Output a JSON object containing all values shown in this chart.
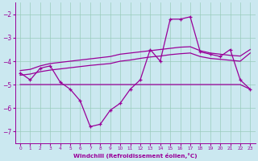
{
  "xlabel": "Windchill (Refroidissement éolien,°C)",
  "background_color": "#cbe8f0",
  "grid_color": "#99ccbb",
  "line_color": "#990099",
  "x": [
    0,
    1,
    2,
    3,
    4,
    5,
    6,
    7,
    8,
    9,
    10,
    11,
    12,
    13,
    14,
    15,
    16,
    17,
    18,
    19,
    20,
    21,
    22,
    23
  ],
  "windchill": [
    -4.5,
    -4.8,
    -4.3,
    -4.2,
    -4.9,
    -5.2,
    -5.7,
    -6.8,
    -6.7,
    -6.1,
    -5.8,
    -5.2,
    -4.8,
    -3.5,
    -4.0,
    -2.2,
    -2.2,
    -2.1,
    -3.6,
    -3.7,
    -3.8,
    -3.5,
    -4.8,
    -5.2
  ],
  "line_upper": [
    -4.4,
    -4.35,
    -4.2,
    -4.1,
    -4.05,
    -4.0,
    -3.95,
    -3.9,
    -3.85,
    -3.8,
    -3.7,
    -3.65,
    -3.6,
    -3.55,
    -3.5,
    -3.45,
    -3.4,
    -3.38,
    -3.55,
    -3.65,
    -3.7,
    -3.75,
    -3.78,
    -3.5
  ],
  "line_mid": [
    -4.6,
    -4.55,
    -4.45,
    -4.38,
    -4.33,
    -4.28,
    -4.23,
    -4.18,
    -4.14,
    -4.1,
    -4.0,
    -3.95,
    -3.88,
    -3.82,
    -3.78,
    -3.72,
    -3.68,
    -3.65,
    -3.8,
    -3.88,
    -3.92,
    -3.96,
    -4.0,
    -3.65
  ],
  "line_flat": [
    -5.0,
    -5.0,
    -5.0,
    -5.0,
    -5.0,
    -5.0,
    -5.0,
    -5.0,
    -5.0,
    -5.0,
    -5.0,
    -5.0,
    -5.0,
    -5.0,
    -5.0,
    -5.0,
    -5.0,
    -5.0,
    -5.0,
    -5.0,
    -5.0,
    -5.0,
    -5.0,
    -5.2
  ],
  "ylim": [
    -7.5,
    -1.5
  ],
  "yticks": [
    -7,
    -6,
    -5,
    -4,
    -3,
    -2
  ],
  "xlim": [
    -0.5,
    23.5
  ]
}
